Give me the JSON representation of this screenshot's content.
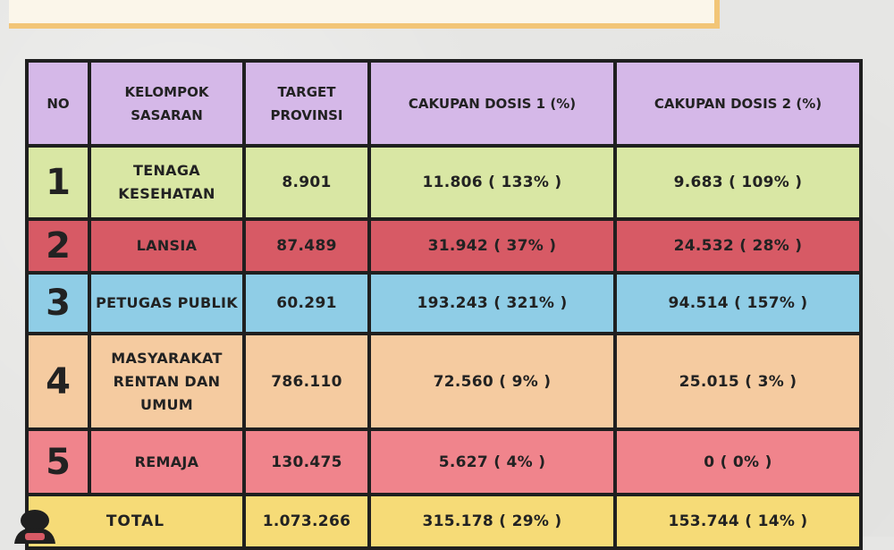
{
  "header_columns": {
    "no": "NO",
    "kelompok": "KELOMPOK SASARAN",
    "target": "TARGET PROVINSI",
    "dosis1": "CAKUPAN DOSIS 1 (%)",
    "dosis2": "CAKUPAN DOSIS 2 (%)"
  },
  "rows": [
    {
      "no": "1",
      "kelompok": "TENAGA KESEHATAN",
      "target": "8.901",
      "dosis1": "11.806 ( 133% )",
      "dosis2": "9.683 ( 109% )"
    },
    {
      "no": "2",
      "kelompok": "LANSIA",
      "target": "87.489",
      "dosis1": "31.942 ( 37% )",
      "dosis2": "24.532 ( 28% )"
    },
    {
      "no": "3",
      "kelompok": "PETUGAS PUBLIK",
      "target": "60.291",
      "dosis1": "193.243 ( 321% )",
      "dosis2": "94.514 ( 157% )"
    },
    {
      "no": "4",
      "kelompok": "MASYARAKAT RENTAN DAN UMUM",
      "target": "786.110",
      "dosis1": "72.560 ( 9% )",
      "dosis2": "25.015 ( 3% )"
    },
    {
      "no": "5",
      "kelompok": "REMAJA",
      "target": "130.475",
      "dosis1": "5.627 ( 4% )",
      "dosis2": "0 ( 0% )"
    }
  ],
  "total": {
    "label": "TOTAL",
    "target": "1.073.266",
    "dosis1": "315.178 ( 29% )",
    "dosis2": "153.744 ( 14% )"
  },
  "colors": {
    "header": "#d5b8e8",
    "row1": "#d9e7a4",
    "row2": "#d75a65",
    "row3": "#8fcde6",
    "row4": "#f5cba0",
    "row5": "#f0848c",
    "total": "#f6db77"
  }
}
